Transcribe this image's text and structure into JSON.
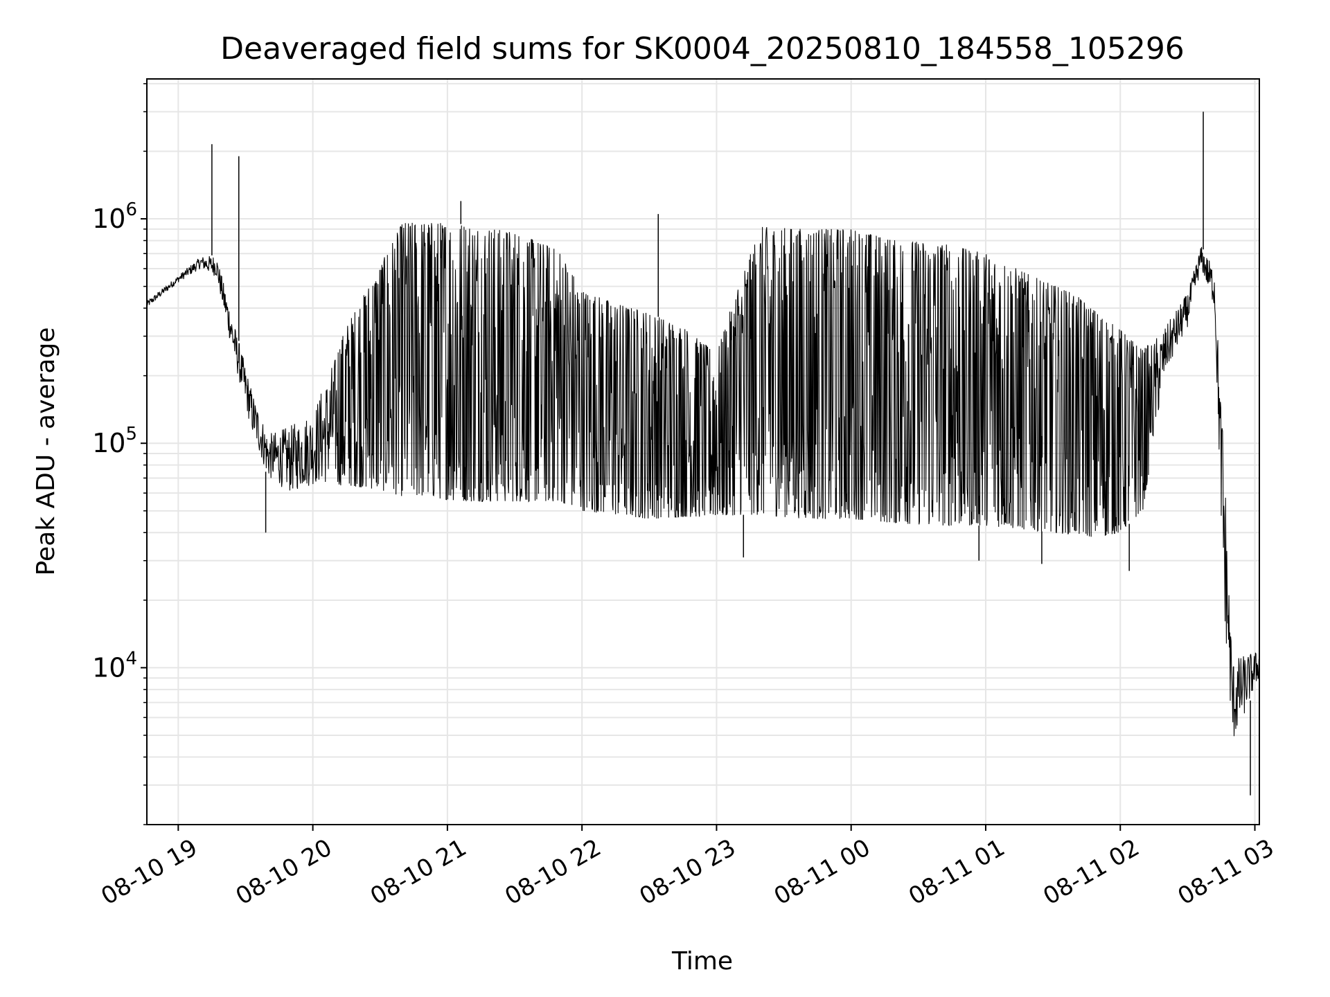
{
  "chart_data": {
    "type": "line",
    "title": "Deaveraged field sums for SK0004_20250810_184558_105296",
    "xlabel": "Time",
    "ylabel": "Peak ADU - average",
    "y_scale": "log",
    "ylim": [
      2000,
      4200000
    ],
    "xlim": [
      "2025-08-10 18:46",
      "2025-08-11 03:02"
    ],
    "grid": true,
    "line_color": "#000000",
    "grid_color": "#e6e6e6",
    "x_ticks": [
      {
        "label": "08-10 19",
        "time": "2025-08-10 19:00"
      },
      {
        "label": "08-10 20",
        "time": "2025-08-10 20:00"
      },
      {
        "label": "08-10 21",
        "time": "2025-08-10 21:00"
      },
      {
        "label": "08-10 22",
        "time": "2025-08-10 22:00"
      },
      {
        "label": "08-10 23",
        "time": "2025-08-10 23:00"
      },
      {
        "label": "08-11 00",
        "time": "2025-08-11 00:00"
      },
      {
        "label": "08-11 01",
        "time": "2025-08-11 01:00"
      },
      {
        "label": "08-11 02",
        "time": "2025-08-11 02:00"
      },
      {
        "label": "08-11 03",
        "time": "2025-08-11 03:00"
      }
    ],
    "y_ticks": [
      {
        "value": 10000,
        "base": "10",
        "exp": "4"
      },
      {
        "value": 100000,
        "base": "10",
        "exp": "5"
      },
      {
        "value": 1000000,
        "base": "10",
        "exp": "6"
      }
    ],
    "series": [
      {
        "band": {
          "time": [
            "2025-08-10 18:46",
            "2025-08-10 19:00",
            "2025-08-10 19:10",
            "2025-08-10 19:17",
            "2025-08-10 19:25",
            "2025-08-10 19:33",
            "2025-08-10 19:40",
            "2025-08-10 19:50",
            "2025-08-10 20:00",
            "2025-08-10 20:15",
            "2025-08-10 20:30",
            "2025-08-10 20:40",
            "2025-08-10 20:50",
            "2025-08-10 21:00",
            "2025-08-10 21:10",
            "2025-08-10 21:30",
            "2025-08-10 21:50",
            "2025-08-10 22:00",
            "2025-08-10 22:15",
            "2025-08-10 22:30",
            "2025-08-10 22:45",
            "2025-08-10 23:00",
            "2025-08-10 23:10",
            "2025-08-10 23:20",
            "2025-08-10 23:40",
            "2025-08-11 00:00",
            "2025-08-11 00:20",
            "2025-08-11 00:40",
            "2025-08-11 01:00",
            "2025-08-11 01:20",
            "2025-08-11 01:40",
            "2025-08-11 01:50",
            "2025-08-11 02:00",
            "2025-08-11 02:10",
            "2025-08-11 02:20",
            "2025-08-11 02:30",
            "2025-08-11 02:36",
            "2025-08-11 02:42",
            "2025-08-11 02:46",
            "2025-08-11 02:50",
            "2025-08-11 03:02"
          ],
          "high": [
            430000,
            560000,
            680000,
            690000,
            340000,
            170000,
            110000,
            120000,
            140000,
            330000,
            620000,
            960000,
            960000,
            960000,
            940000,
            870000,
            720000,
            480000,
            420000,
            380000,
            330000,
            250000,
            520000,
            920000,
            900000,
            900000,
            800000,
            780000,
            700000,
            560000,
            460000,
            380000,
            320000,
            260000,
            330000,
            470000,
            760000,
            600000,
            95000,
            11000,
            12000
          ],
          "low": [
            400000,
            520000,
            600000,
            550000,
            230000,
            110000,
            70000,
            60000,
            65000,
            65000,
            62000,
            58000,
            58000,
            56000,
            55000,
            55000,
            55000,
            50000,
            48000,
            46000,
            47000,
            47000,
            48000,
            48000,
            46000,
            46000,
            44000,
            43000,
            43000,
            41000,
            39000,
            38000,
            40000,
            50000,
            200000,
            330000,
            600000,
            400000,
            20000,
            4500,
            9000
          ]
        },
        "spikes": [
          {
            "time": "2025-08-10 19:15",
            "value": 2150000
          },
          {
            "time": "2025-08-10 19:27",
            "value": 1900000
          },
          {
            "time": "2025-08-10 19:39",
            "value": 40000
          },
          {
            "time": "2025-08-10 21:06",
            "value": 1200000
          },
          {
            "time": "2025-08-10 22:34",
            "value": 1050000
          },
          {
            "time": "2025-08-10 23:12",
            "value": 31000
          },
          {
            "time": "2025-08-11 00:57",
            "value": 30000
          },
          {
            "time": "2025-08-11 01:25",
            "value": 29000
          },
          {
            "time": "2025-08-11 02:04",
            "value": 27000
          },
          {
            "time": "2025-08-11 02:37",
            "value": 3000000
          },
          {
            "time": "2025-08-11 02:58",
            "value": 2700
          }
        ]
      }
    ]
  }
}
